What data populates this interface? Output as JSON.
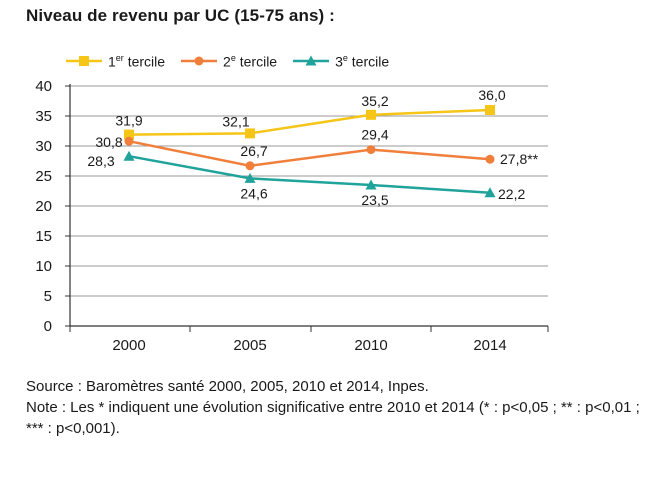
{
  "title": "Niveau de revenu par UC (15-75 ans) :",
  "chart_data": {
    "type": "line",
    "x": [
      "2000",
      "2005",
      "2010",
      "2014"
    ],
    "series": [
      {
        "name_main": "1",
        "name_sup": "er",
        "name_rest": " tercile",
        "color": "#f5c518",
        "marker": "square",
        "values": [
          31.9,
          32.1,
          35.2,
          36.0
        ],
        "labels": [
          "31,9",
          "32,1",
          "35,2",
          "36,0"
        ]
      },
      {
        "name_main": "2",
        "name_sup": "e",
        "name_rest": " tercile",
        "color": "#f07f3c",
        "marker": "circle",
        "values": [
          30.8,
          26.7,
          29.4,
          27.8
        ],
        "labels": [
          "30,8",
          "26,7",
          "29,4",
          "27,8**"
        ]
      },
      {
        "name_main": "3",
        "name_sup": "e",
        "name_rest": " tercile",
        "color": "#1fa39a",
        "marker": "triangle",
        "values": [
          28.3,
          24.6,
          23.5,
          22.2
        ],
        "labels": [
          "28,3",
          "24,6",
          "23,5",
          "22,2"
        ]
      }
    ],
    "yticks": [
      "0",
      "5",
      "10",
      "15",
      "20",
      "25",
      "30",
      "35",
      "40"
    ],
    "ylim": [
      0,
      40
    ],
    "grid": true,
    "legend": "top"
  },
  "footer": {
    "source": "Source : Baromètres santé 2000, 2005, 2010 et 2014, Inpes.",
    "note": "Note : Les * indiquent une évolution significative entre 2010 et 2014 (* : p<0,05 ; ** : p<0,01 ; *** : p<0,001)."
  }
}
